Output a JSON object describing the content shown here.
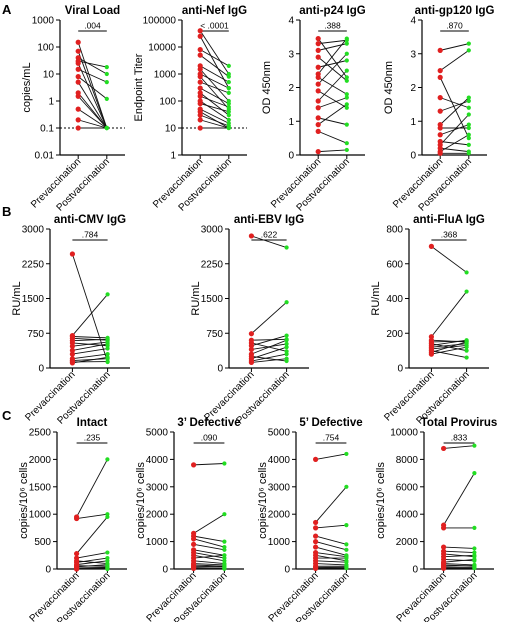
{
  "colors": {
    "pre": "#e02020",
    "post": "#22dd22",
    "line": "#111111"
  },
  "panel_labels": [
    "A",
    "B",
    "C"
  ],
  "chart_data": [
    {
      "type": "scatter",
      "title": "Viral Load",
      "ylabel": "copies/mL",
      "categories": [
        "Prevaccination",
        "Postvaccination"
      ],
      "yscale": "log",
      "ylim": [
        0.01,
        1000
      ],
      "yticks": [
        0.01,
        0.1,
        1,
        10,
        100,
        1000
      ],
      "ytick_labels": [
        "0.01",
        "0.1",
        "1",
        "10",
        "100",
        "1000"
      ],
      "pvalue": ".004",
      "reference_line": 0.1,
      "pairs": [
        [
          150,
          0.1
        ],
        [
          70,
          0.1
        ],
        [
          40,
          10
        ],
        [
          30,
          18
        ],
        [
          25,
          0.1
        ],
        [
          15,
          5
        ],
        [
          8,
          1.2
        ],
        [
          5,
          0.1
        ],
        [
          2,
          0.1
        ],
        [
          1.5,
          0.1
        ],
        [
          0.5,
          0.1
        ],
        [
          0.2,
          0.1
        ],
        [
          0.1,
          0.1
        ]
      ]
    },
    {
      "type": "scatter",
      "title": "anti-Nef IgG",
      "ylabel": "Endpoint Titer",
      "categories": [
        "Prevaccination",
        "Postvaccination"
      ],
      "yscale": "log",
      "ylim": [
        1,
        100000
      ],
      "yticks": [
        1,
        10,
        100,
        1000,
        10000,
        100000
      ],
      "ytick_labels": [
        "1",
        "10",
        "100",
        "1000",
        "10000",
        "100000"
      ],
      "pvalue": "< .0001",
      "reference_line": 10,
      "pairs": [
        [
          40000,
          1000
        ],
        [
          25000,
          300
        ],
        [
          8000,
          2000
        ],
        [
          5000,
          800
        ],
        [
          2000,
          500
        ],
        [
          1500,
          100
        ],
        [
          1000,
          300
        ],
        [
          800,
          50
        ],
        [
          500,
          200
        ],
        [
          300,
          80
        ],
        [
          200,
          30
        ],
        [
          150,
          60
        ],
        [
          100,
          20
        ],
        [
          80,
          40
        ],
        [
          50,
          15
        ],
        [
          40,
          10
        ],
        [
          30,
          12
        ],
        [
          20,
          10
        ],
        [
          10,
          10
        ]
      ]
    },
    {
      "type": "scatter",
      "title": "anti-p24 IgG",
      "ylabel": "OD 450nm",
      "categories": [
        "Prevaccination",
        "Postvaccination"
      ],
      "yscale": "linear",
      "ylim": [
        0,
        4
      ],
      "yticks": [
        0,
        1,
        2,
        3,
        4
      ],
      "ytick_labels": [
        "0",
        "1",
        "2",
        "3",
        "4"
      ],
      "pvalue": ".388",
      "pairs": [
        [
          3.45,
          2.3
        ],
        [
          3.3,
          3.4
        ],
        [
          3.1,
          3.3
        ],
        [
          2.9,
          2.2
        ],
        [
          2.6,
          2.8
        ],
        [
          2.4,
          3.45
        ],
        [
          2.3,
          1.8
        ],
        [
          2.1,
          3.0
        ],
        [
          1.9,
          1.4
        ],
        [
          1.6,
          2.5
        ],
        [
          1.4,
          1.7
        ],
        [
          1.1,
          0.9
        ],
        [
          0.9,
          1.5
        ],
        [
          0.7,
          0.35
        ],
        [
          0.1,
          0.15
        ]
      ]
    },
    {
      "type": "scatter",
      "title": "anti-gp120 IgG",
      "ylabel": "OD 450nm",
      "categories": [
        "Prevaccination",
        "Postvaccination"
      ],
      "yscale": "linear",
      "ylim": [
        0,
        4
      ],
      "yticks": [
        0,
        1,
        2,
        3,
        4
      ],
      "ytick_labels": [
        "0",
        "1",
        "2",
        "3",
        "4"
      ],
      "pvalue": ".870",
      "pairs": [
        [
          3.1,
          3.3
        ],
        [
          2.5,
          3.1
        ],
        [
          2.3,
          0.5
        ],
        [
          1.7,
          1.4
        ],
        [
          1.3,
          1.6
        ],
        [
          0.9,
          1.7
        ],
        [
          0.8,
          0.8
        ],
        [
          0.6,
          0.9
        ],
        [
          0.4,
          0.3
        ],
        [
          0.3,
          1.2
        ],
        [
          0.2,
          0.1
        ],
        [
          0.1,
          0.6
        ],
        [
          0.05,
          0.05
        ]
      ]
    },
    {
      "type": "scatter",
      "title": "anti-CMV IgG",
      "ylabel": "RU/mL",
      "categories": [
        "Prevaccination",
        "Postvaccination"
      ],
      "yscale": "linear",
      "ylim": [
        0,
        3000
      ],
      "yticks": [
        0,
        750,
        1500,
        2250,
        3000
      ],
      "ytick_labels": [
        "0",
        "750",
        "1500",
        "2250",
        "3000"
      ],
      "pvalue": ".784",
      "pairs": [
        [
          2460,
          130
        ],
        [
          700,
          1590
        ],
        [
          680,
          650
        ],
        [
          640,
          600
        ],
        [
          590,
          620
        ],
        [
          540,
          480
        ],
        [
          470,
          560
        ],
        [
          380,
          520
        ],
        [
          300,
          420
        ],
        [
          200,
          300
        ],
        [
          160,
          200
        ],
        [
          130,
          140
        ],
        [
          110,
          230
        ]
      ]
    },
    {
      "type": "scatter",
      "title": "anti-EBV IgG",
      "ylabel": "RU/mL",
      "categories": [
        "Prevaccination",
        "Postvaccination"
      ],
      "yscale": "linear",
      "ylim": [
        0,
        3000
      ],
      "yticks": [
        0,
        750,
        1500,
        2250,
        3000
      ],
      "ytick_labels": [
        "0",
        "750",
        "1500",
        "2250",
        "3000"
      ],
      "pvalue": ".622",
      "pairs": [
        [
          2850,
          2600
        ],
        [
          740,
          1420
        ],
        [
          600,
          620
        ],
        [
          540,
          360
        ],
        [
          480,
          700
        ],
        [
          400,
          520
        ],
        [
          300,
          600
        ],
        [
          250,
          150
        ],
        [
          200,
          450
        ],
        [
          150,
          300
        ],
        [
          120,
          200
        ]
      ]
    },
    {
      "type": "scatter",
      "title": "anti-FluA IgG",
      "ylabel": "RU/mL",
      "categories": [
        "Prevaccination",
        "Postvaccination"
      ],
      "yscale": "linear",
      "ylim": [
        0,
        800
      ],
      "yticks": [
        0,
        200,
        400,
        600,
        800
      ],
      "ytick_labels": [
        "0",
        "200",
        "400",
        "600",
        "800"
      ],
      "pvalue": ".368",
      "pairs": [
        [
          700,
          550
        ],
        [
          180,
          440
        ],
        [
          160,
          150
        ],
        [
          150,
          155
        ],
        [
          140,
          100
        ],
        [
          130,
          160
        ],
        [
          120,
          140
        ],
        [
          110,
          130
        ],
        [
          100,
          60
        ],
        [
          90,
          150
        ],
        [
          80,
          120
        ]
      ]
    },
    {
      "type": "scatter",
      "title": "Intact",
      "ylabel": "copies/10⁶ cells",
      "categories": [
        "Prevaccination",
        "Postvaccination"
      ],
      "yscale": "linear",
      "ylim": [
        0,
        2500
      ],
      "yticks": [
        0,
        500,
        1000,
        1500,
        2000,
        2500
      ],
      "ytick_labels": [
        "0",
        "500",
        "1000",
        "1500",
        "2000",
        "2500"
      ],
      "pvalue": ".235",
      "pairs": [
        [
          950,
          2000
        ],
        [
          920,
          1000
        ],
        [
          280,
          950
        ],
        [
          200,
          300
        ],
        [
          150,
          100
        ],
        [
          120,
          200
        ],
        [
          80,
          150
        ],
        [
          60,
          50
        ],
        [
          40,
          80
        ],
        [
          20,
          30
        ],
        [
          10,
          20
        ],
        [
          5,
          10
        ],
        [
          0,
          0
        ]
      ]
    },
    {
      "type": "scatter",
      "title": "3’ Defective",
      "ylabel": "copies/10⁶ cells",
      "categories": [
        "Prevaccination",
        "Postvaccination"
      ],
      "yscale": "linear",
      "ylim": [
        0,
        5000
      ],
      "yticks": [
        0,
        1000,
        2000,
        3000,
        4000,
        5000
      ],
      "ytick_labels": [
        "0",
        "1000",
        "2000",
        "3000",
        "4000",
        "5000"
      ],
      "pvalue": ".090",
      "pairs": [
        [
          3800,
          3850
        ],
        [
          1300,
          2000
        ],
        [
          1200,
          1000
        ],
        [
          1100,
          800
        ],
        [
          900,
          700
        ],
        [
          700,
          500
        ],
        [
          600,
          400
        ],
        [
          500,
          300
        ],
        [
          400,
          500
        ],
        [
          300,
          200
        ],
        [
          200,
          150
        ],
        [
          150,
          100
        ],
        [
          100,
          80
        ],
        [
          50,
          30
        ],
        [
          20,
          10
        ]
      ]
    },
    {
      "type": "scatter",
      "title": "5’ Defective",
      "ylabel": "copies/10⁶ cells",
      "categories": [
        "Prevaccination",
        "Postvaccination"
      ],
      "yscale": "linear",
      "ylim": [
        0,
        5000
      ],
      "yticks": [
        0,
        1000,
        2000,
        3000,
        4000,
        5000
      ],
      "ytick_labels": [
        "0",
        "1000",
        "2000",
        "3000",
        "4000",
        "5000"
      ],
      "pvalue": ".754",
      "pairs": [
        [
          4000,
          4200
        ],
        [
          1700,
          3000
        ],
        [
          1500,
          1600
        ],
        [
          1200,
          900
        ],
        [
          1000,
          700
        ],
        [
          800,
          500
        ],
        [
          600,
          450
        ],
        [
          500,
          300
        ],
        [
          400,
          400
        ],
        [
          300,
          250
        ],
        [
          200,
          150
        ],
        [
          100,
          100
        ],
        [
          50,
          60
        ],
        [
          20,
          30
        ]
      ]
    },
    {
      "type": "scatter",
      "title": "Total Provirus",
      "ylabel": "copies/10⁶ cells",
      "categories": [
        "Prevaccination",
        "Postvaccination"
      ],
      "yscale": "linear",
      "ylim": [
        0,
        10000
      ],
      "yticks": [
        0,
        2000,
        4000,
        6000,
        8000,
        10000
      ],
      "ytick_labels": [
        "0",
        "2000",
        "4000",
        "6000",
        "8000",
        "10000"
      ],
      "pvalue": ".833",
      "pairs": [
        [
          8800,
          9000
        ],
        [
          3200,
          7000
        ],
        [
          3000,
          3000
        ],
        [
          1600,
          1500
        ],
        [
          1300,
          1200
        ],
        [
          1100,
          900
        ],
        [
          900,
          1000
        ],
        [
          700,
          600
        ],
        [
          500,
          700
        ],
        [
          400,
          300
        ],
        [
          300,
          200
        ],
        [
          200,
          250
        ],
        [
          100,
          100
        ],
        [
          50,
          60
        ]
      ]
    }
  ]
}
